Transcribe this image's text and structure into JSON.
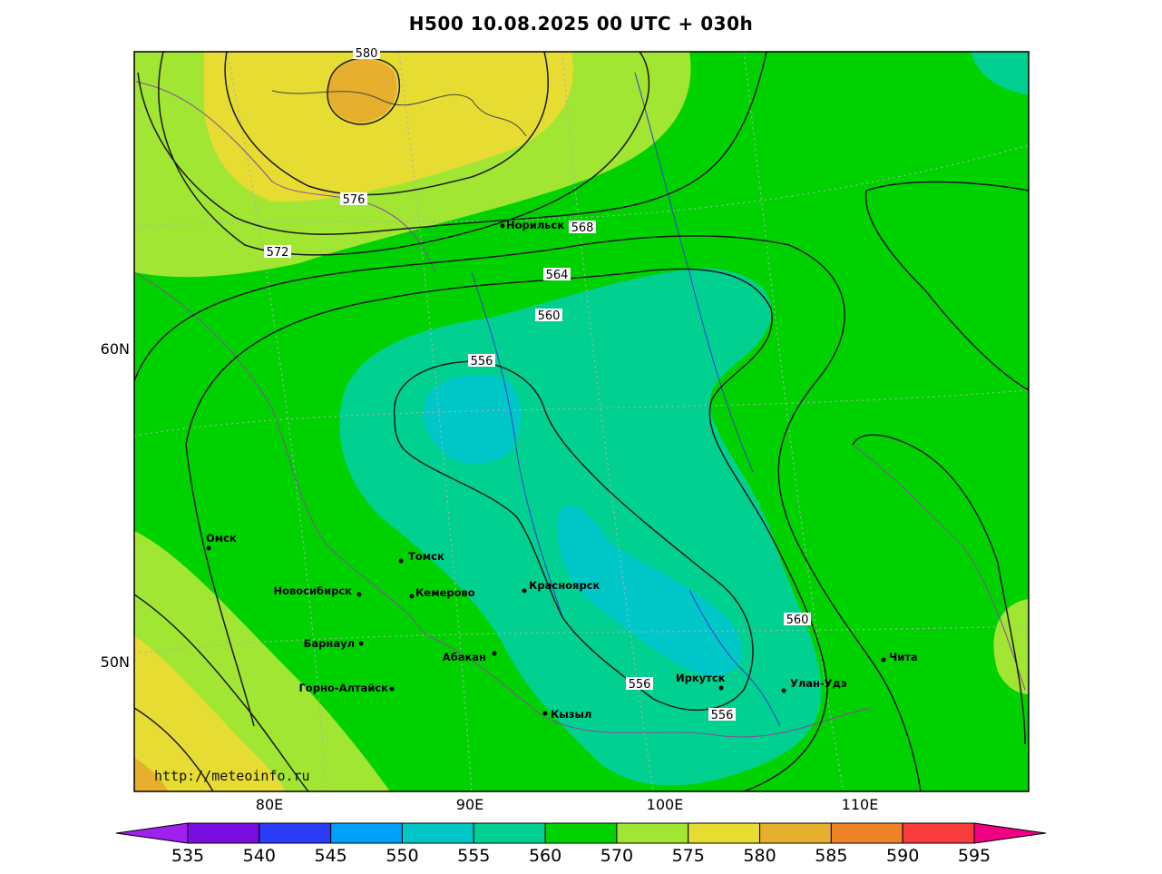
{
  "title": "H500  10.08.2025 00 UTC + 030h",
  "watermark": "http://meteoinfo.ru",
  "axes": {
    "lon_labels": [
      "80E",
      "90E",
      "100E",
      "110E"
    ],
    "lat_labels": [
      "60N",
      "50N"
    ]
  },
  "contour_labels": [
    "580",
    "576",
    "572",
    "568",
    "564",
    "560",
    "556",
    "556",
    "556",
    "560"
  ],
  "cities": [
    {
      "name": "Норильск"
    },
    {
      "name": "Омск"
    },
    {
      "name": "Томск"
    },
    {
      "name": "Новосибирск"
    },
    {
      "name": "Кемерово"
    },
    {
      "name": "Красноярск"
    },
    {
      "name": "Барнаул"
    },
    {
      "name": "Абакан"
    },
    {
      "name": "Горно-Алтайск"
    },
    {
      "name": "Кызыл"
    },
    {
      "name": "Иркутск"
    },
    {
      "name": "Улан-Удэ"
    },
    {
      "name": "Чита"
    }
  ],
  "colorbar": {
    "ticks": [
      "535",
      "540",
      "545",
      "550",
      "555",
      "560",
      "570",
      "575",
      "580",
      "585",
      "590",
      "595"
    ],
    "colors": [
      "#a020f0",
      "#7a0ee0",
      "#2a3cf5",
      "#00a0f8",
      "#00c8c8",
      "#00d090",
      "#00d200",
      "#a0e632",
      "#e6dc32",
      "#e6af2d",
      "#f08228",
      "#fa3c3c",
      "#f00082"
    ]
  },
  "fill_colors": {
    "c555": "#00c8c8",
    "c560": "#00d090",
    "c570": "#00d200",
    "c575": "#a0e632",
    "c580": "#e6dc32",
    "c585": "#e6af2d"
  }
}
